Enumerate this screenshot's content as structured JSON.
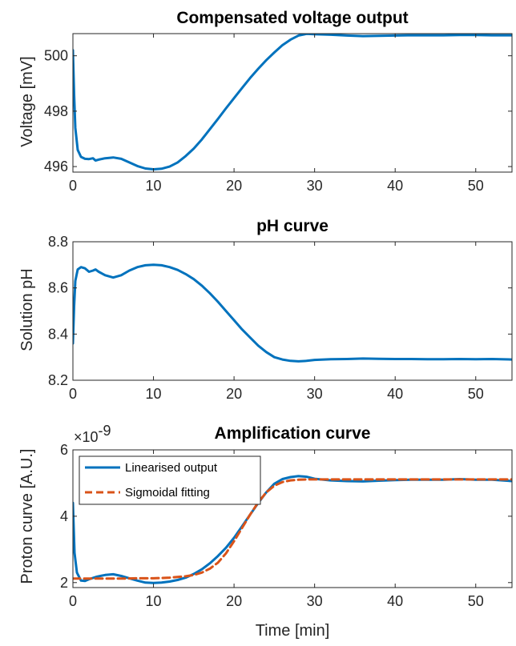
{
  "chart_data": [
    {
      "type": "line",
      "title": "Compensated voltage output",
      "xlabel": "",
      "ylabel": "Voltage [mV]",
      "xlim": [
        0,
        54.5
      ],
      "ylim": [
        495.8,
        500.8
      ],
      "xticks": [
        0,
        10,
        20,
        30,
        40,
        50
      ],
      "yticks": [
        496,
        498,
        500
      ],
      "grid": false,
      "series": [
        {
          "color": "#0072BD",
          "style": "solid",
          "x": [
            0,
            0.15,
            0.3,
            0.6,
            1.0,
            1.5,
            2.0,
            2.5,
            2.8,
            3.2,
            4.0,
            5.0,
            6.0,
            7.0,
            8.0,
            9.0,
            10.0,
            11.0,
            12.0,
            13.0,
            14.0,
            15.0,
            16.0,
            17.0,
            18.0,
            19.0,
            20.0,
            21.0,
            22.0,
            23.0,
            24.0,
            25.0,
            26.0,
            27.0,
            28.0,
            29.0,
            30.0,
            32.0,
            34.0,
            36.0,
            38.0,
            40.0,
            42.0,
            44.0,
            46.0,
            48.0,
            50.0,
            52.0,
            54.5
          ],
          "y": [
            500.2,
            498.6,
            497.4,
            496.6,
            496.35,
            496.28,
            496.27,
            496.3,
            496.22,
            496.25,
            496.3,
            496.33,
            496.28,
            496.15,
            496.02,
            495.93,
            495.9,
            495.92,
            496.0,
            496.15,
            496.38,
            496.65,
            496.98,
            497.35,
            497.72,
            498.1,
            498.47,
            498.84,
            499.2,
            499.53,
            499.84,
            500.12,
            500.38,
            500.58,
            500.73,
            500.79,
            500.78,
            500.76,
            500.73,
            500.71,
            500.72,
            500.73,
            500.74,
            500.74,
            500.74,
            500.75,
            500.75,
            500.74,
            500.74
          ]
        }
      ]
    },
    {
      "type": "line",
      "title": "pH curve",
      "xlabel": "",
      "ylabel": "Solution pH",
      "xlim": [
        0,
        54.5
      ],
      "ylim": [
        8.2,
        8.8
      ],
      "xticks": [
        0,
        10,
        20,
        30,
        40,
        50
      ],
      "yticks": [
        8.2,
        8.4,
        8.6,
        8.8
      ],
      "grid": false,
      "series": [
        {
          "color": "#0072BD",
          "style": "solid",
          "x": [
            0,
            0.15,
            0.3,
            0.6,
            1.0,
            1.5,
            2.0,
            2.5,
            2.8,
            3.2,
            4.0,
            5.0,
            6.0,
            7.0,
            8.0,
            9.0,
            10.0,
            11.0,
            12.0,
            13.0,
            14.0,
            15.0,
            16.0,
            17.0,
            18.0,
            19.0,
            20.0,
            21.0,
            22.0,
            23.0,
            24.0,
            25.0,
            26.0,
            27.0,
            28.0,
            29.0,
            30.0,
            32.0,
            34.0,
            36.0,
            38.0,
            40.0,
            42.0,
            44.0,
            46.0,
            48.0,
            50.0,
            52.0,
            54.5
          ],
          "y": [
            8.36,
            8.52,
            8.63,
            8.68,
            8.69,
            8.685,
            8.67,
            8.675,
            8.68,
            8.67,
            8.655,
            8.645,
            8.655,
            8.675,
            8.69,
            8.698,
            8.7,
            8.698,
            8.69,
            8.678,
            8.66,
            8.638,
            8.61,
            8.577,
            8.54,
            8.5,
            8.46,
            8.42,
            8.385,
            8.35,
            8.322,
            8.3,
            8.29,
            8.284,
            8.282,
            8.284,
            8.288,
            8.291,
            8.292,
            8.294,
            8.293,
            8.292,
            8.292,
            8.291,
            8.291,
            8.292,
            8.291,
            8.292,
            8.29
          ]
        }
      ]
    },
    {
      "type": "line",
      "title": "Amplification curve",
      "xlabel": "Time [min]",
      "ylabel": "Proton curve [A.U.]",
      "exponent_base": "×10",
      "exponent_power": "-9",
      "xlim": [
        0,
        54.5
      ],
      "ylim": [
        1.85,
        6.0
      ],
      "xticks": [
        0,
        10,
        20,
        30,
        40,
        50
      ],
      "yticks": [
        2,
        4,
        6
      ],
      "grid": false,
      "legend_position": "top-left",
      "series": [
        {
          "name": "Linearised output",
          "color": "#0072BD",
          "style": "solid",
          "x": [
            0,
            0.2,
            0.5,
            1.0,
            1.5,
            2.0,
            3.0,
            4.0,
            5.0,
            6.0,
            7.0,
            8.0,
            9.0,
            10.0,
            11.0,
            12.0,
            13.0,
            14.0,
            15.0,
            16.0,
            17.0,
            18.0,
            19.0,
            20.0,
            21.0,
            22.0,
            23.0,
            24.0,
            25.0,
            26.0,
            27.0,
            28.0,
            29.0,
            30.0,
            32.0,
            34.0,
            36.0,
            38.0,
            40.0,
            42.0,
            44.0,
            46.0,
            48.0,
            50.0,
            52.0,
            54.5
          ],
          "y": [
            4.4,
            2.9,
            2.3,
            2.06,
            2.05,
            2.1,
            2.18,
            2.23,
            2.25,
            2.2,
            2.13,
            2.06,
            2.0,
            1.99,
            2.0,
            2.03,
            2.08,
            2.15,
            2.26,
            2.4,
            2.58,
            2.8,
            3.05,
            3.35,
            3.7,
            4.05,
            4.4,
            4.72,
            4.98,
            5.12,
            5.18,
            5.21,
            5.19,
            5.13,
            5.08,
            5.06,
            5.05,
            5.07,
            5.09,
            5.1,
            5.1,
            5.1,
            5.12,
            5.1,
            5.1,
            5.06
          ]
        },
        {
          "name": "Sigmoidal fitting",
          "color": "#D95319",
          "style": "dashed",
          "x": [
            0,
            2,
            4,
            6,
            8,
            10,
            12,
            14,
            15,
            16,
            17,
            18,
            19,
            20,
            21,
            22,
            23,
            24,
            25,
            26,
            27,
            28,
            29,
            30,
            32,
            34,
            36,
            38,
            40,
            42,
            44,
            46,
            48,
            50,
            52,
            54.5
          ],
          "y": [
            2.12,
            2.12,
            2.12,
            2.12,
            2.13,
            2.13,
            2.15,
            2.19,
            2.23,
            2.3,
            2.42,
            2.6,
            2.88,
            3.25,
            3.65,
            4.05,
            4.42,
            4.72,
            4.92,
            5.03,
            5.08,
            5.1,
            5.11,
            5.11,
            5.11,
            5.11,
            5.11,
            5.11,
            5.11,
            5.11,
            5.11,
            5.11,
            5.11,
            5.11,
            5.11,
            5.11
          ]
        }
      ]
    }
  ]
}
